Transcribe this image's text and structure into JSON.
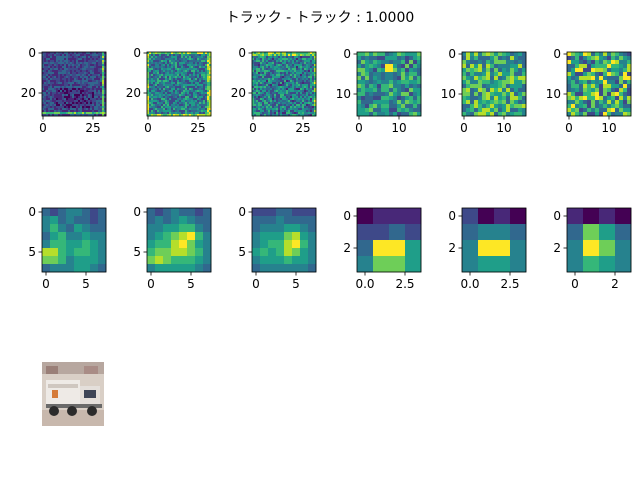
{
  "figure": {
    "title": "トラック - トラック : 1.0000"
  },
  "palette": {
    "viridis": [
      "#440154",
      "#482878",
      "#3e4989",
      "#31688e",
      "#26828e",
      "#1f9e89",
      "#35b779",
      "#6ece58",
      "#b5de2b",
      "#fde725"
    ],
    "frame": "#000000"
  },
  "chart_data": [
    {
      "type": "heatmap",
      "name": "row1-map1",
      "size": 32,
      "colormap": "viridis",
      "xticks": [
        0,
        25
      ],
      "yticks": [
        0,
        20
      ],
      "tick_labels_x": [
        "0",
        "25"
      ],
      "tick_labels_y": [
        "0",
        "20"
      ]
    },
    {
      "type": "heatmap",
      "name": "row1-map2",
      "size": 32,
      "colormap": "viridis",
      "xticks": [
        0,
        25
      ],
      "yticks": [
        0,
        20
      ],
      "tick_labels_x": [
        "0",
        "25"
      ],
      "tick_labels_y": [
        "0",
        "20"
      ]
    },
    {
      "type": "heatmap",
      "name": "row1-map3",
      "size": 32,
      "colormap": "viridis",
      "xticks": [
        0,
        25
      ],
      "yticks": [
        0,
        20
      ],
      "tick_labels_x": [
        "0",
        "25"
      ],
      "tick_labels_y": [
        "0",
        "20"
      ]
    },
    {
      "type": "heatmap",
      "name": "row1-map4",
      "size": 16,
      "colormap": "viridis",
      "xticks": [
        0,
        10
      ],
      "yticks": [
        0,
        10
      ],
      "tick_labels_x": [
        "0",
        "10"
      ],
      "tick_labels_y": [
        "0",
        "10"
      ]
    },
    {
      "type": "heatmap",
      "name": "row1-map5",
      "size": 16,
      "colormap": "viridis",
      "xticks": [
        0,
        10
      ],
      "yticks": [
        0,
        10
      ],
      "tick_labels_x": [
        "0",
        "10"
      ],
      "tick_labels_y": [
        "0",
        "10"
      ]
    },
    {
      "type": "heatmap",
      "name": "row1-map6",
      "size": 16,
      "colormap": "viridis",
      "xticks": [
        0,
        10
      ],
      "yticks": [
        0,
        10
      ],
      "tick_labels_x": [
        "0",
        "10"
      ],
      "tick_labels_y": [
        "0",
        "10"
      ]
    },
    {
      "type": "heatmap",
      "name": "row2-map1",
      "size": 8,
      "colormap": "viridis",
      "xticks": [
        0,
        5
      ],
      "yticks": [
        0,
        5
      ],
      "tick_labels_x": [
        "0",
        "5"
      ],
      "tick_labels_y": [
        "0",
        "5"
      ],
      "values": [
        [
          0.3,
          0.2,
          0.35,
          0.45,
          0.4,
          0.3,
          0.25,
          0.3
        ],
        [
          0.45,
          0.55,
          0.3,
          0.4,
          0.35,
          0.3,
          0.25,
          0.3
        ],
        [
          0.4,
          0.6,
          0.45,
          0.3,
          0.5,
          0.45,
          0.35,
          0.35
        ],
        [
          0.35,
          0.55,
          0.6,
          0.45,
          0.4,
          0.5,
          0.45,
          0.4
        ],
        [
          0.4,
          0.6,
          0.65,
          0.55,
          0.55,
          0.6,
          0.5,
          0.4
        ],
        [
          0.8,
          0.85,
          0.6,
          0.55,
          0.6,
          0.65,
          0.55,
          0.4
        ],
        [
          0.7,
          0.75,
          0.6,
          0.45,
          0.5,
          0.55,
          0.5,
          0.4
        ],
        [
          0.35,
          0.4,
          0.45,
          0.45,
          0.5,
          0.55,
          0.45,
          0.35
        ]
      ]
    },
    {
      "type": "heatmap",
      "name": "row2-map2",
      "size": 8,
      "colormap": "viridis",
      "xticks": [
        0,
        5
      ],
      "yticks": [
        0,
        5
      ],
      "tick_labels_x": [
        "0",
        "5"
      ],
      "tick_labels_y": [
        "0",
        "5"
      ],
      "values": [
        [
          0.35,
          0.25,
          0.3,
          0.4,
          0.35,
          0.3,
          0.25,
          0.3
        ],
        [
          0.35,
          0.4,
          0.35,
          0.4,
          0.5,
          0.4,
          0.35,
          0.3
        ],
        [
          0.4,
          0.45,
          0.5,
          0.55,
          0.6,
          0.65,
          0.45,
          0.35
        ],
        [
          0.45,
          0.55,
          0.6,
          0.7,
          0.8,
          0.9,
          0.6,
          0.4
        ],
        [
          0.55,
          0.6,
          0.65,
          0.85,
          0.95,
          0.75,
          0.55,
          0.4
        ],
        [
          0.65,
          0.75,
          0.7,
          0.85,
          0.8,
          0.7,
          0.6,
          0.45
        ],
        [
          0.75,
          0.85,
          0.7,
          0.65,
          0.6,
          0.6,
          0.55,
          0.4
        ],
        [
          0.45,
          0.5,
          0.55,
          0.55,
          0.5,
          0.5,
          0.45,
          0.35
        ]
      ]
    },
    {
      "type": "heatmap",
      "name": "row2-map3",
      "size": 8,
      "colormap": "viridis",
      "xticks": [
        0,
        5
      ],
      "yticks": [
        0,
        5
      ],
      "tick_labels_x": [
        "0",
        "5"
      ],
      "tick_labels_y": [
        "0",
        "5"
      ],
      "values": [
        [
          0.25,
          0.2,
          0.25,
          0.3,
          0.3,
          0.25,
          0.2,
          0.25
        ],
        [
          0.3,
          0.35,
          0.3,
          0.4,
          0.35,
          0.3,
          0.3,
          0.3
        ],
        [
          0.35,
          0.45,
          0.4,
          0.45,
          0.5,
          0.5,
          0.4,
          0.35
        ],
        [
          0.4,
          0.5,
          0.55,
          0.55,
          0.7,
          0.85,
          0.55,
          0.4
        ],
        [
          0.45,
          0.55,
          0.6,
          0.6,
          0.8,
          0.9,
          0.6,
          0.4
        ],
        [
          0.5,
          0.6,
          0.55,
          0.65,
          0.8,
          0.75,
          0.55,
          0.4
        ],
        [
          0.45,
          0.55,
          0.5,
          0.55,
          0.6,
          0.55,
          0.5,
          0.4
        ],
        [
          0.35,
          0.4,
          0.4,
          0.45,
          0.45,
          0.45,
          0.4,
          0.35
        ]
      ]
    },
    {
      "type": "heatmap",
      "name": "row2-map4",
      "size": 4,
      "colormap": "viridis",
      "xticks": [
        0,
        2.5
      ],
      "yticks": [
        0,
        2
      ],
      "tick_labels_x": [
        "0.0",
        "2.5"
      ],
      "tick_labels_y": [
        "0",
        "2"
      ],
      "values": [
        [
          0.05,
          0.1,
          0.15,
          0.1
        ],
        [
          0.2,
          0.25,
          0.3,
          0.25
        ],
        [
          0.35,
          1.0,
          0.95,
          0.5
        ],
        [
          0.45,
          0.75,
          0.75,
          0.5
        ]
      ]
    },
    {
      "type": "heatmap",
      "name": "row2-map5",
      "size": 4,
      "colormap": "viridis",
      "xticks": [
        0,
        2.5
      ],
      "yticks": [
        0,
        2
      ],
      "tick_labels_x": [
        "0.0",
        "2.5"
      ],
      "tick_labels_y": [
        "0",
        "2"
      ],
      "values": [
        [
          0.25,
          0.05,
          0.1,
          0.0
        ],
        [
          0.35,
          0.4,
          0.4,
          0.35
        ],
        [
          0.4,
          0.95,
          1.0,
          0.45
        ],
        [
          0.4,
          0.5,
          0.55,
          0.45
        ]
      ]
    },
    {
      "type": "heatmap",
      "name": "row2-map6",
      "size": 4,
      "colormap": "viridis",
      "xticks": [
        0,
        2.5
      ],
      "yticks": [
        0,
        2
      ],
      "tick_labels_x": [
        "0",
        "2"
      ],
      "tick_labels_y": [
        "0",
        "2"
      ],
      "values": [
        [
          0.15,
          0.05,
          0.1,
          0.0
        ],
        [
          0.35,
          0.7,
          0.5,
          0.3
        ],
        [
          0.45,
          0.95,
          0.7,
          0.4
        ],
        [
          0.4,
          0.6,
          0.55,
          0.4
        ]
      ]
    }
  ]
}
